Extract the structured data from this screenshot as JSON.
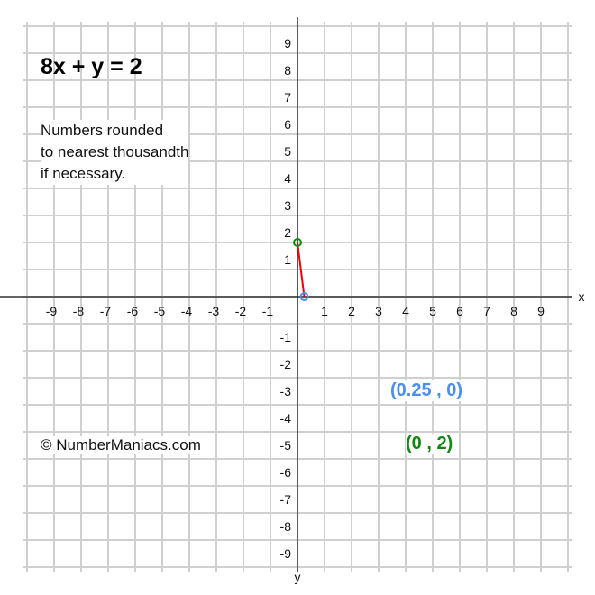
{
  "chart_data": {
    "type": "line",
    "title": "8x + y = 2",
    "xlabel": "x",
    "ylabel": "y",
    "xlim": [
      -10,
      10
    ],
    "ylim": [
      -10,
      10
    ],
    "grid": true,
    "x_ticks": [
      -9,
      -8,
      -7,
      -6,
      -5,
      -4,
      -3,
      -2,
      -1,
      1,
      2,
      3,
      4,
      5,
      6,
      7,
      8,
      9
    ],
    "y_ticks": [
      9,
      8,
      7,
      6,
      5,
      4,
      3,
      2,
      1,
      -1,
      -2,
      -3,
      -4,
      -5,
      -6,
      -7,
      -8,
      -9
    ],
    "segment": {
      "from": [
        0,
        2
      ],
      "to": [
        0.25,
        0
      ],
      "color": "#ee0000"
    },
    "points": [
      {
        "x": 0.25,
        "y": 0,
        "label": "(0.25 , 0)",
        "color": "#4a8ef0"
      },
      {
        "x": 0,
        "y": 2,
        "label": "(0 , 2)",
        "color": "#118811"
      }
    ]
  },
  "note": [
    "Numbers rounded",
    "to nearest thousandth",
    "if necessary."
  ],
  "copyright": "© NumberManiacs.com"
}
